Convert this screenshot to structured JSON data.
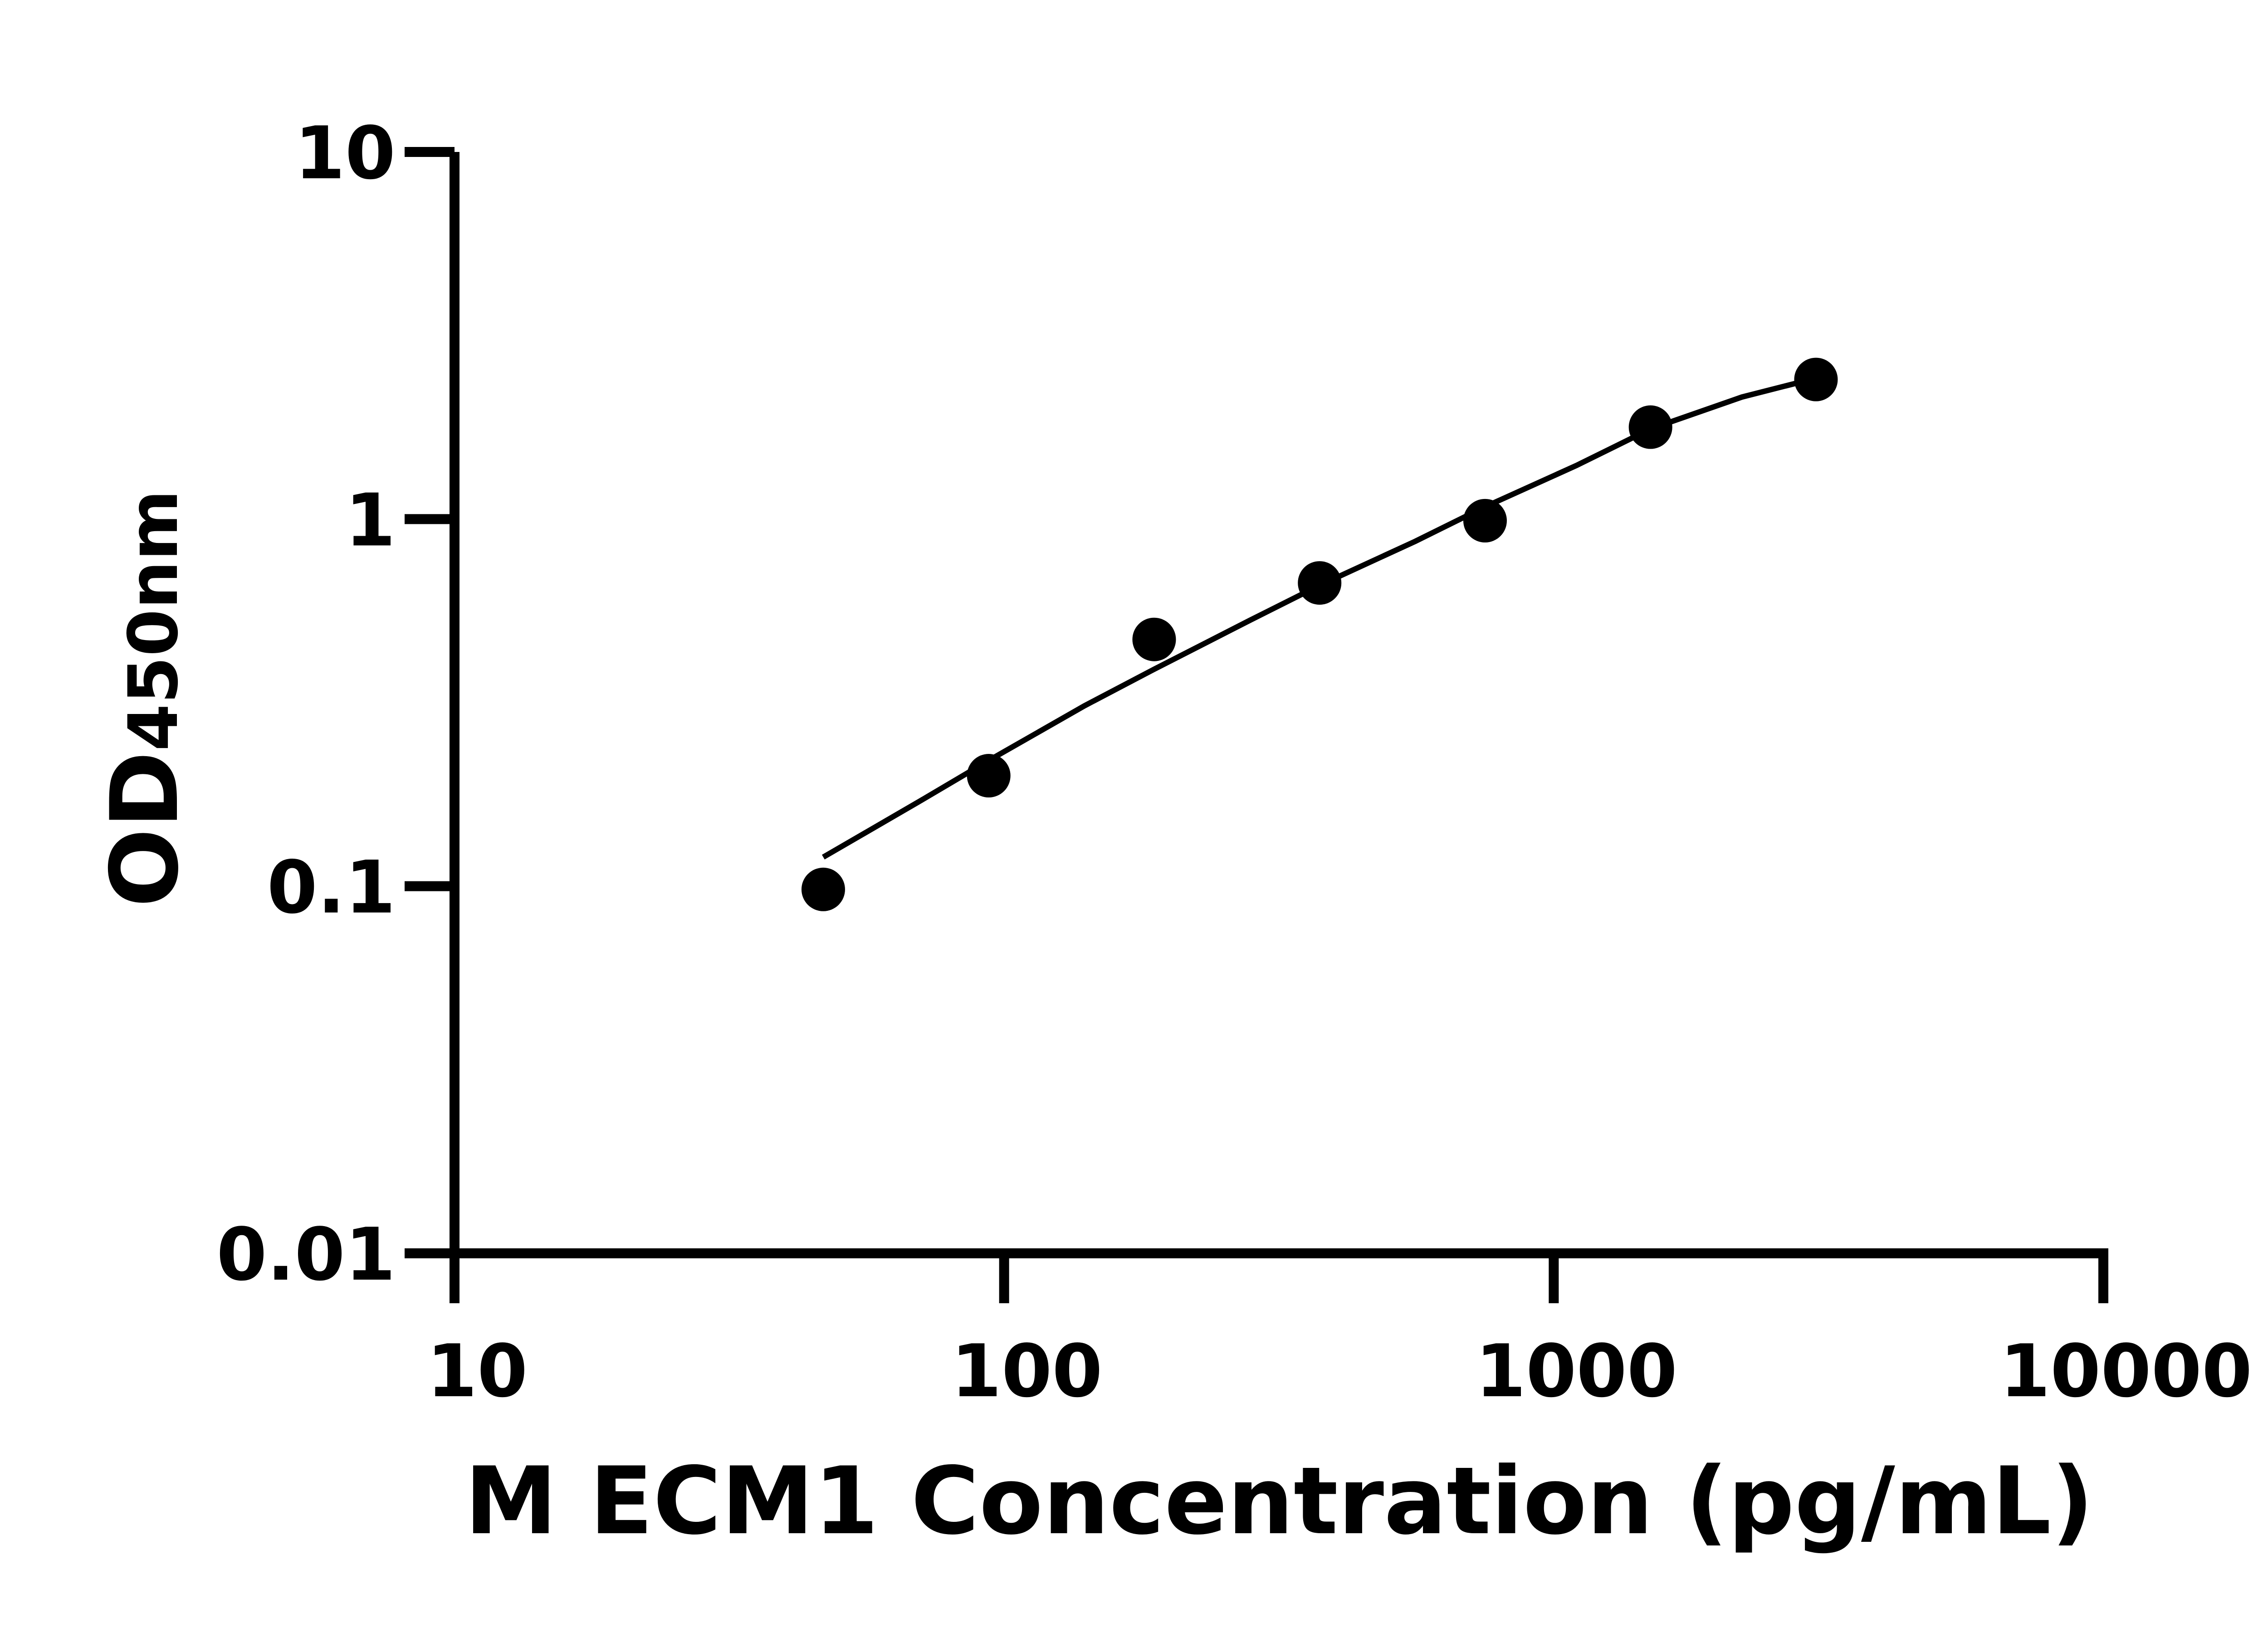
{
  "chart_data": {
    "type": "scatter",
    "title": "",
    "xlabel": "M ECM1 Concentration (pg/mL)",
    "ylabel_main": "OD",
    "ylabel_sub": "450nm",
    "x_scale": "log",
    "y_scale": "log",
    "xlim": [
      10,
      10000
    ],
    "ylim": [
      0.01,
      10
    ],
    "x_ticks": [
      10,
      100,
      1000,
      10000
    ],
    "x_tick_labels": [
      "10",
      "100",
      "1000",
      "10000"
    ],
    "y_ticks": [
      0.01,
      0.1,
      1,
      10
    ],
    "y_tick_labels": [
      "0.01",
      "0.1",
      "1",
      "10"
    ],
    "grid": false,
    "legend": "none",
    "color": "#000000",
    "series": [
      {
        "type": "scatter",
        "x": [
          46.875,
          93.75,
          187.5,
          375,
          750,
          1500,
          3000
        ],
        "y": [
          0.098,
          0.2,
          0.47,
          0.67,
          0.99,
          1.78,
          2.4
        ]
      },
      {
        "type": "line",
        "x": [
          46.875,
          70,
          93.75,
          140,
          187.5,
          280,
          375,
          560,
          750,
          1100,
          1500,
          2200,
          3000
        ],
        "y": [
          0.12,
          0.17,
          0.22,
          0.31,
          0.39,
          0.53,
          0.66,
          0.87,
          1.08,
          1.4,
          1.76,
          2.15,
          2.42
        ]
      }
    ]
  }
}
